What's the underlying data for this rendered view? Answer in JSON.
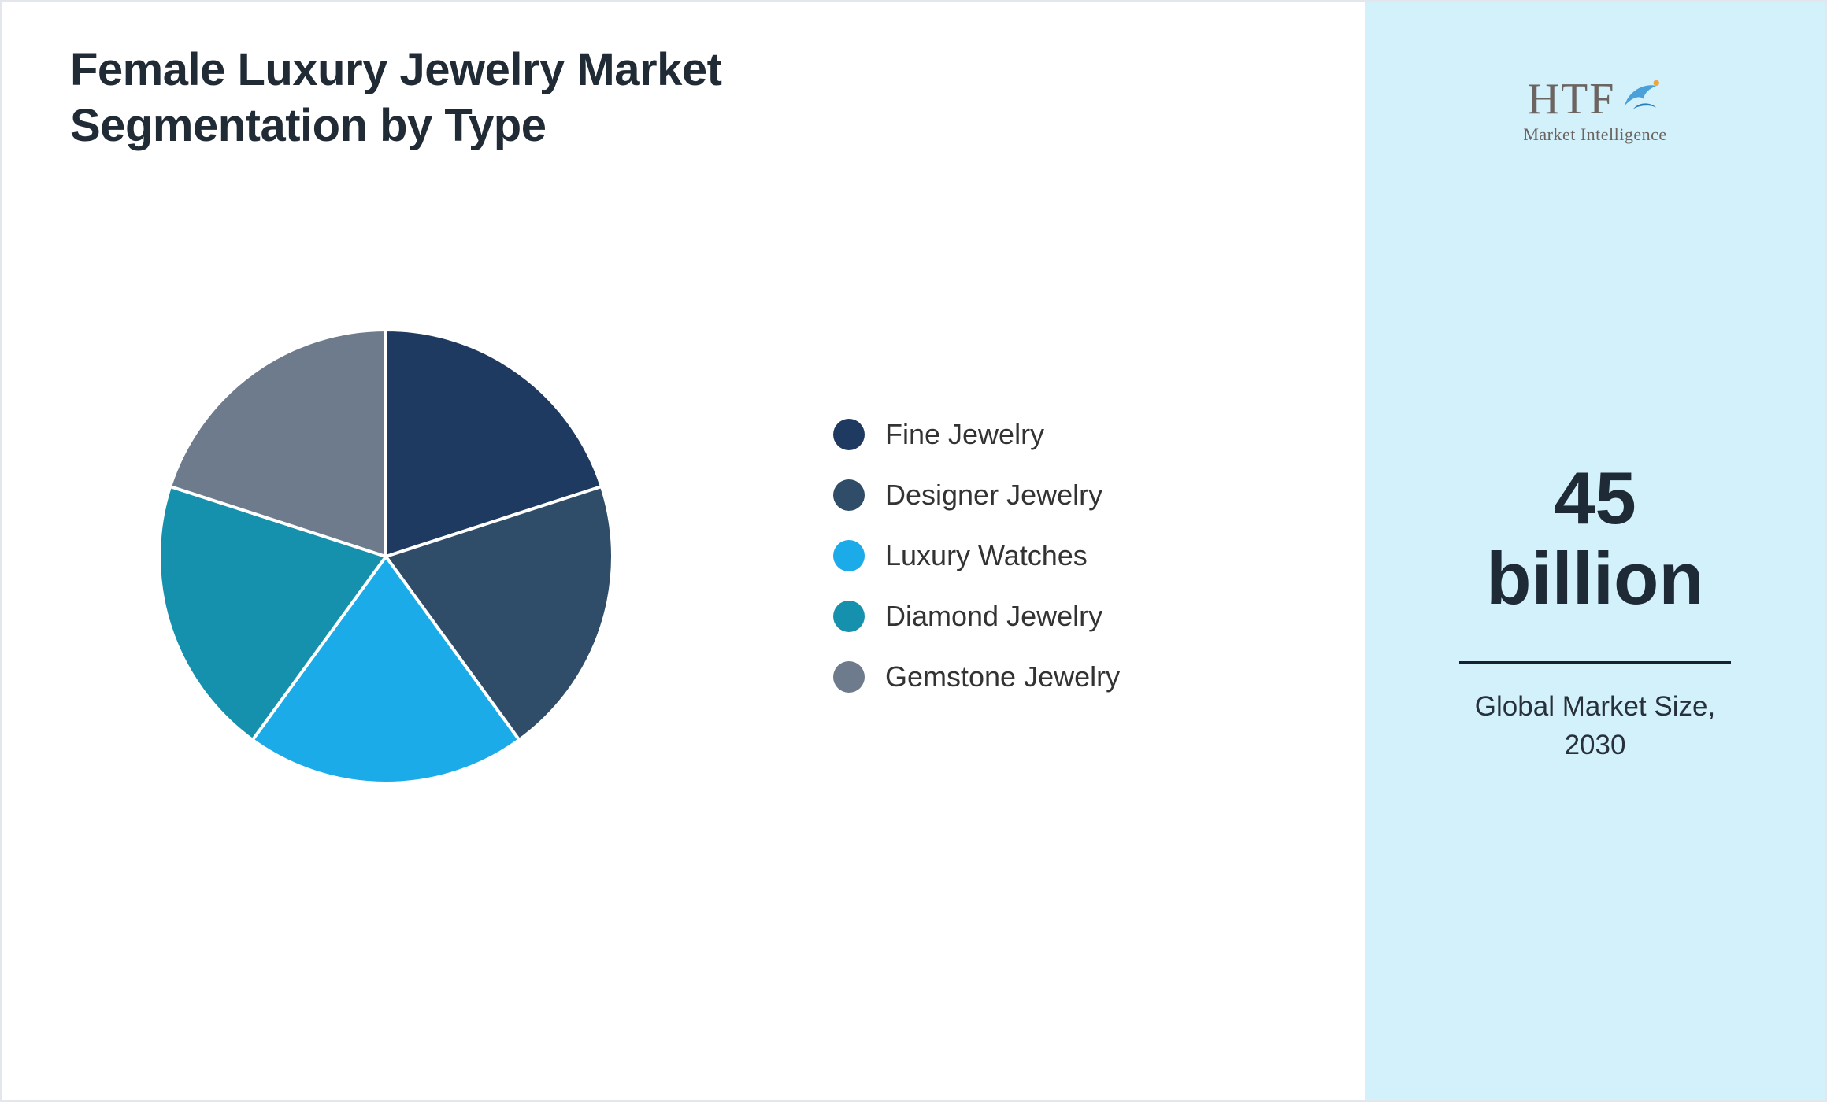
{
  "title": "Female Luxury Jewelry Market Segmentation by Type",
  "chart_data": {
    "type": "pie",
    "title": "Female Luxury Jewelry Market Segmentation by Type",
    "categories": [
      "Fine Jewelry",
      "Designer Jewelry",
      "Luxury Watches",
      "Diamond Jewelry",
      "Gemstone Jewelry"
    ],
    "values": [
      20,
      20,
      20,
      20,
      20
    ],
    "unit": "percent",
    "colors": [
      "#1f3a60",
      "#2f4d68",
      "#1babe9",
      "#1591ad",
      "#6d7b8c"
    ],
    "legend_position": "right",
    "start_angle_deg": 0,
    "direction": "clockwise",
    "slice_border_color": "#ffffff"
  },
  "sidebar": {
    "background": "#d3f1fb",
    "logo": {
      "text": "HTF",
      "subtext": "Market Intelligence",
      "icon": "dolphin-icon"
    },
    "stat_value": "45 billion",
    "stat_caption": "Global Market Size, 2030"
  }
}
